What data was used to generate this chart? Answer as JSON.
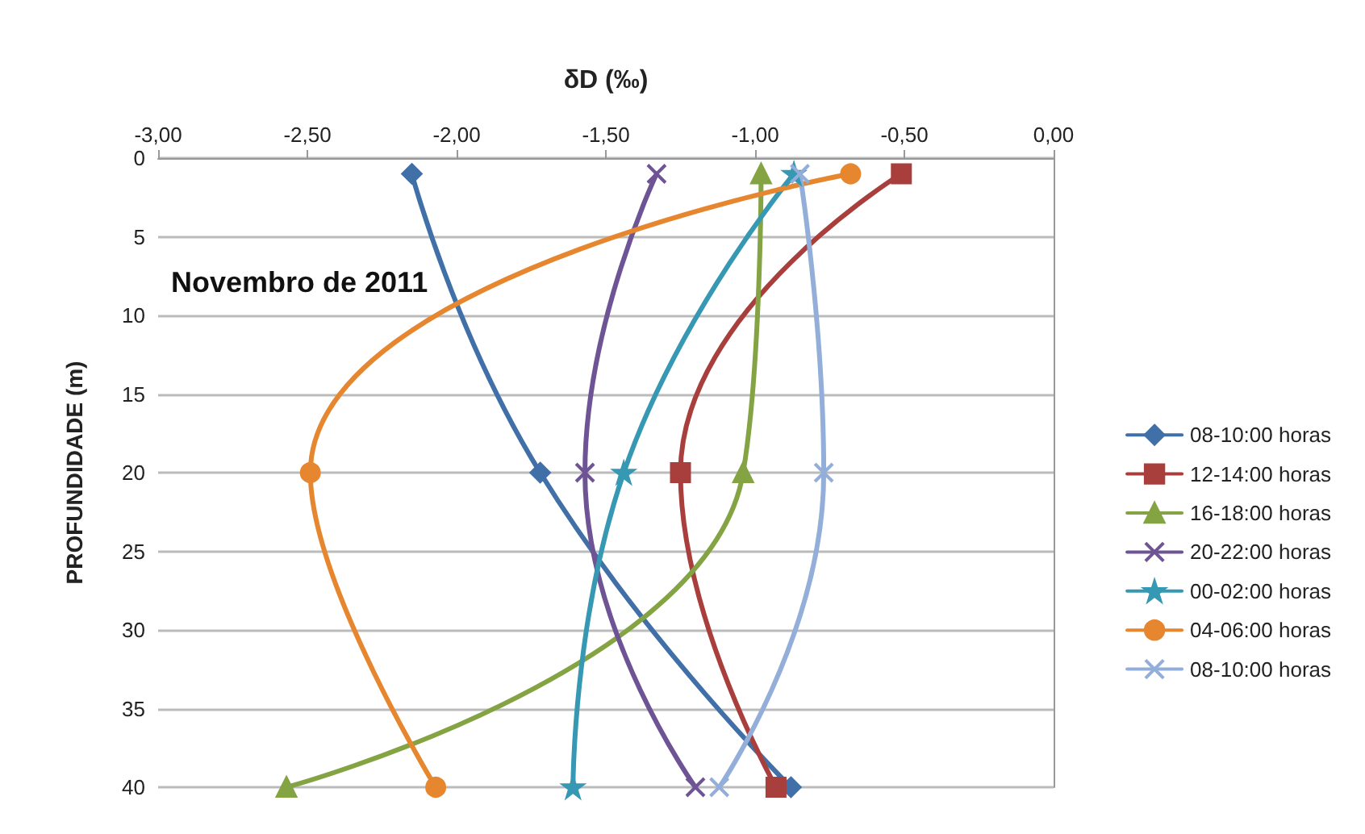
{
  "chart_data": {
    "type": "line",
    "xlabel": "δD (‰)",
    "ylabel": "PROFUNDIDADE (m)",
    "annotations": [
      "Novembro de 2011"
    ],
    "xlim": [
      -3,
      0
    ],
    "xticks": [
      {
        "value": -3,
        "label": "-3,00"
      },
      {
        "value": -2.5,
        "label": "-2,50"
      },
      {
        "value": -2,
        "label": "-2,00"
      },
      {
        "value": -1.5,
        "label": "-1,50"
      },
      {
        "value": -1,
        "label": "-1,00"
      },
      {
        "value": -0.5,
        "label": "-0,50"
      },
      {
        "value": 0,
        "label": "0,00"
      }
    ],
    "ylim": [
      40,
      0
    ],
    "yticks": [
      0,
      5,
      10,
      15,
      20,
      25,
      30,
      35,
      40
    ],
    "grid": "y",
    "legend": "right",
    "line_style": "solid",
    "series": [
      {
        "name": "08-10:00 horas",
        "color": "#4170a8",
        "marker": "diamond",
        "x": [
          -2.15,
          -1.72,
          -0.88
        ],
        "values": [
          1,
          20,
          40
        ]
      },
      {
        "name": "12-14:00 horas",
        "color": "#a83f3c",
        "marker": "square",
        "x": [
          -0.51,
          -1.25,
          -0.93
        ],
        "values": [
          1,
          20,
          40
        ]
      },
      {
        "name": "16-18:00 horas",
        "color": "#84a444",
        "marker": "triangle",
        "x": [
          -0.98,
          -1.04,
          -2.57
        ],
        "values": [
          1,
          20,
          40
        ]
      },
      {
        "name": "20-22:00 horas",
        "color": "#6f5495",
        "marker": "cross",
        "x": [
          -1.33,
          -1.57,
          -1.2
        ],
        "values": [
          1,
          20,
          40
        ]
      },
      {
        "name": "00-02:00 horas",
        "color": "#3698b2",
        "marker": "star",
        "x": [
          -0.87,
          -1.44,
          -1.61
        ],
        "values": [
          1,
          20,
          40
        ]
      },
      {
        "name": "04-06:00 horas",
        "color": "#e6862f",
        "marker": "circle",
        "x": [
          -0.68,
          -2.49,
          -2.07
        ],
        "values": [
          1,
          20,
          40
        ]
      },
      {
        "name": "08-10:00 horas",
        "color": "#93aed8",
        "marker": "cross",
        "x": [
          -0.85,
          -0.77,
          -1.12
        ],
        "values": [
          1,
          20,
          40
        ]
      }
    ]
  }
}
